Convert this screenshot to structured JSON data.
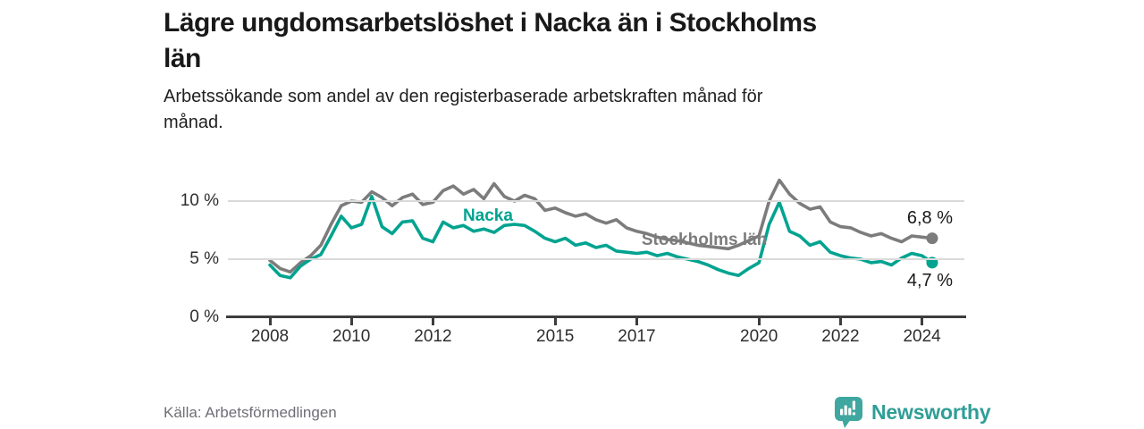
{
  "header": {
    "title_line1": "Lägre ungdomsarbetslöshet i Nacka än i Stockholms",
    "title_line2": "län",
    "subtitle_line1": "Arbetssökande som andel av den registerbaserade arbetskraften månad för",
    "subtitle_line2": "månad."
  },
  "chart_data": {
    "type": "line",
    "title": "Lägre ungdomsarbetslöshet i Nacka än i Stockholms län",
    "subtitle": "Arbetssökande som andel av den registerbaserade arbetskraften månad för månad.",
    "xlabel": "",
    "ylabel": "",
    "ylim": [
      0,
      12.5
    ],
    "xlim": [
      2008,
      2024.6
    ],
    "grid": "horizontal",
    "gridline_values": [
      5,
      10
    ],
    "y_ticks": [
      {
        "v": 0,
        "label": "0 %"
      },
      {
        "v": 5,
        "label": "5 %"
      },
      {
        "v": 10,
        "label": "10 %"
      }
    ],
    "x_ticks": [
      {
        "v": 2008,
        "label": "2008"
      },
      {
        "v": 2010,
        "label": "2010"
      },
      {
        "v": 2012,
        "label": "2012"
      },
      {
        "v": 2015,
        "label": "2015"
      },
      {
        "v": 2017,
        "label": "2017"
      },
      {
        "v": 2020,
        "label": "2020"
      },
      {
        "v": 2022,
        "label": "2022"
      },
      {
        "v": 2024,
        "label": "2024"
      }
    ],
    "x": [
      2008,
      2008.25,
      2008.5,
      2008.75,
      2009,
      2009.25,
      2009.5,
      2009.75,
      2010,
      2010.25,
      2010.5,
      2010.75,
      2011,
      2011.25,
      2011.5,
      2011.75,
      2012,
      2012.25,
      2012.5,
      2012.75,
      2013,
      2013.25,
      2013.5,
      2013.75,
      2014,
      2014.25,
      2014.5,
      2014.75,
      2015,
      2015.25,
      2015.5,
      2015.75,
      2016,
      2016.25,
      2016.5,
      2016.75,
      2017,
      2017.25,
      2017.5,
      2017.75,
      2018,
      2018.25,
      2018.5,
      2018.75,
      2019,
      2019.25,
      2019.5,
      2019.75,
      2020,
      2020.25,
      2020.5,
      2020.75,
      2021,
      2021.25,
      2021.5,
      2021.75,
      2022,
      2022.25,
      2022.5,
      2022.75,
      2023,
      2023.25,
      2023.5,
      2023.75,
      2024,
      2024.25
    ],
    "series": [
      {
        "name": "Stockholms län",
        "color": "#7c7c7c",
        "end_label": "6,8 %",
        "end_value": 6.8,
        "values": [
          4.9,
          4.2,
          3.9,
          4.7,
          5.3,
          6.2,
          8.0,
          9.6,
          10.0,
          9.9,
          10.8,
          10.3,
          9.6,
          10.3,
          10.6,
          9.7,
          9.9,
          10.9,
          11.3,
          10.6,
          11.0,
          10.2,
          11.5,
          10.4,
          10.0,
          10.5,
          10.2,
          9.2,
          9.4,
          9.0,
          8.7,
          8.9,
          8.4,
          8.1,
          8.4,
          7.7,
          7.4,
          7.2,
          6.9,
          6.7,
          6.6,
          6.4,
          6.2,
          6.1,
          6.0,
          5.9,
          6.2,
          6.6,
          7.0,
          10.0,
          11.8,
          10.6,
          9.8,
          9.3,
          9.5,
          8.2,
          7.8,
          7.7,
          7.3,
          7.0,
          7.2,
          6.8,
          6.5,
          7.0,
          6.9,
          6.8
        ]
      },
      {
        "name": "Nacka",
        "color": "#00a390",
        "end_label": "4,7 %",
        "end_value": 4.7,
        "values": [
          4.5,
          3.6,
          3.4,
          4.4,
          5.0,
          5.4,
          7.0,
          8.7,
          7.7,
          8.0,
          10.4,
          7.8,
          7.2,
          8.2,
          8.3,
          6.8,
          6.5,
          8.2,
          7.7,
          7.9,
          7.4,
          7.6,
          7.3,
          7.9,
          8.0,
          7.9,
          7.4,
          6.8,
          6.5,
          6.8,
          6.2,
          6.4,
          6.0,
          6.2,
          5.7,
          5.6,
          5.5,
          5.6,
          5.3,
          5.5,
          5.2,
          5.0,
          4.8,
          4.5,
          4.1,
          3.8,
          3.6,
          4.2,
          4.7,
          8.0,
          9.9,
          7.4,
          7.0,
          6.2,
          6.5,
          5.6,
          5.3,
          5.1,
          5.0,
          4.7,
          4.8,
          4.5,
          5.1,
          5.5,
          5.3,
          4.7
        ]
      }
    ],
    "annotations": [
      {
        "text": "Nacka",
        "x": 2013.35,
        "y": 8.7,
        "color": "#00a390"
      },
      {
        "text": "Stockholms län",
        "x": 2018.66,
        "y": 6.6,
        "color": "#7c7c7c"
      }
    ],
    "legend_position": "inline-labels"
  },
  "footer": {
    "source": "Källa: Arbetsförmedlingen",
    "brand": "Newsworthy"
  },
  "colors": {
    "nacka": "#00a390",
    "stockholm": "#7c7c7c",
    "grid": "#dadada",
    "axis": "#3d3d3d",
    "logo_icon": "#3fa79f",
    "logo_text": "#2f9e96"
  }
}
